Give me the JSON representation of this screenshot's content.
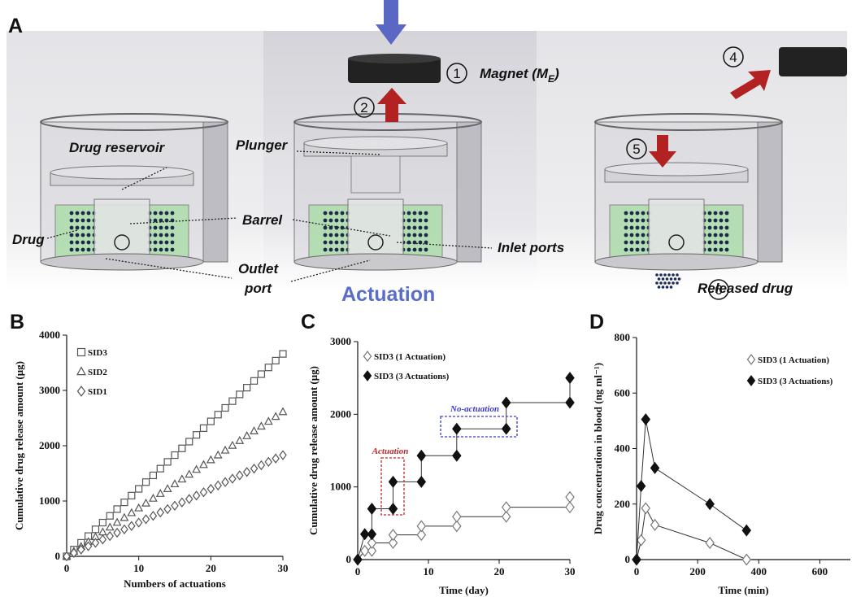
{
  "figure_a": {
    "panel_label": "A",
    "magnet_label": {
      "text": "Magnet (M",
      "sub": "E",
      "close": ")"
    },
    "steps": [
      "1",
      "2",
      "4",
      "5",
      "6"
    ],
    "labels": {
      "drug_reservoir": "Drug reservoir",
      "plunger": "Plunger",
      "barrel": "Barrel",
      "drug": "Drug",
      "outlet_port": [
        "Outlet",
        "port"
      ],
      "inlet_ports": "Inlet ports",
      "actuation": "Actuation",
      "released_drug": "Released drug"
    }
  },
  "chart_data": [
    {
      "type": "scatter",
      "panel": "B",
      "x_label": "Numbers of actuations",
      "y_label": "Cumulative drug release amount (μg)",
      "x": [
        0,
        1,
        2,
        3,
        4,
        5,
        6,
        7,
        8,
        9,
        10,
        11,
        12,
        13,
        14,
        15,
        16,
        17,
        18,
        19,
        20,
        21,
        22,
        23,
        24,
        25,
        26,
        27,
        28,
        29,
        30
      ],
      "xlim": [
        0,
        30
      ],
      "xticks": [
        0,
        10,
        20,
        30
      ],
      "ylim": [
        0,
        4000
      ],
      "yticks": [
        0,
        1000,
        2000,
        3000,
        4000
      ],
      "line": false,
      "series": [
        {
          "name": "SID3",
          "color": "#555555",
          "marker": "square",
          "filled": false,
          "values": [
            0,
            122,
            244,
            366,
            488,
            610,
            732,
            854,
            976,
            1098,
            1220,
            1342,
            1464,
            1586,
            1708,
            1830,
            1952,
            2074,
            2196,
            2318,
            2440,
            2562,
            2684,
            2806,
            2928,
            3050,
            3172,
            3294,
            3416,
            3538,
            3660
          ]
        },
        {
          "name": "SID2",
          "color": "#555555",
          "marker": "triangle",
          "filled": false,
          "values": [
            0,
            87,
            174,
            261,
            348,
            435,
            522,
            609,
            696,
            783,
            870,
            957,
            1044,
            1131,
            1218,
            1305,
            1392,
            1479,
            1566,
            1653,
            1740,
            1827,
            1914,
            2001,
            2088,
            2175,
            2262,
            2349,
            2436,
            2523,
            2610
          ]
        },
        {
          "name": "SID1",
          "color": "#555555",
          "marker": "diamond",
          "filled": false,
          "values": [
            0,
            61,
            122,
            183,
            244,
            305,
            366,
            427,
            488,
            549,
            610,
            671,
            732,
            793,
            854,
            915,
            976,
            1037,
            1098,
            1159,
            1220,
            1281,
            1342,
            1403,
            1464,
            1525,
            1586,
            1647,
            1708,
            1769,
            1830
          ]
        }
      ]
    },
    {
      "type": "line",
      "panel": "C",
      "x_label": "Time (day)",
      "y_label": "Cumulative drug release amount (μg)",
      "x": [
        0,
        1,
        2,
        2,
        5,
        5,
        9,
        9,
        14,
        14,
        21,
        21,
        30,
        30
      ],
      "xlim": [
        0,
        30
      ],
      "xticks": [
        0,
        10,
        20,
        30
      ],
      "ylim": [
        0,
        3000
      ],
      "yticks": [
        0,
        1000,
        2000,
        3000
      ],
      "line": true,
      "annotations": [
        {
          "text": "Actuation",
          "color": "#c0282c"
        },
        {
          "text": "No-actuation",
          "color": "#3a3ad0"
        }
      ],
      "series": [
        {
          "name": "SID3 (1 Actuation)",
          "color": "#777777",
          "marker": "diamond",
          "filled": false,
          "values": [
            0,
            120,
            120,
            230,
            230,
            340,
            340,
            460,
            460,
            590,
            590,
            720,
            720,
            860
          ]
        },
        {
          "name": "SID3 (3 Actuations)",
          "color": "#111111",
          "marker": "diamond",
          "filled": true,
          "values": [
            0,
            350,
            350,
            700,
            700,
            1070,
            1070,
            1430,
            1430,
            1800,
            1800,
            2160,
            2160,
            2500
          ]
        }
      ]
    },
    {
      "type": "line",
      "panel": "D",
      "x_label": "Time (min)",
      "y_label": "Drug concentration in blood (ng ml⁻¹)",
      "x": [
        0,
        15,
        30,
        60,
        240,
        360
      ],
      "xlim": [
        0,
        700
      ],
      "xticks": [
        0,
        200,
        400,
        600
      ],
      "ylim": [
        0,
        800
      ],
      "yticks": [
        0,
        200,
        400,
        600,
        800
      ],
      "line": true,
      "series": [
        {
          "name": "SID3 (1 Actuation)",
          "color": "#777777",
          "marker": "diamond",
          "filled": false,
          "values": [
            0,
            70,
            185,
            125,
            60,
            0
          ]
        },
        {
          "name": "SID3 (3 Actuations)",
          "color": "#111111",
          "marker": "diamond",
          "filled": true,
          "values": [
            0,
            265,
            505,
            330,
            200,
            105
          ]
        }
      ]
    }
  ]
}
